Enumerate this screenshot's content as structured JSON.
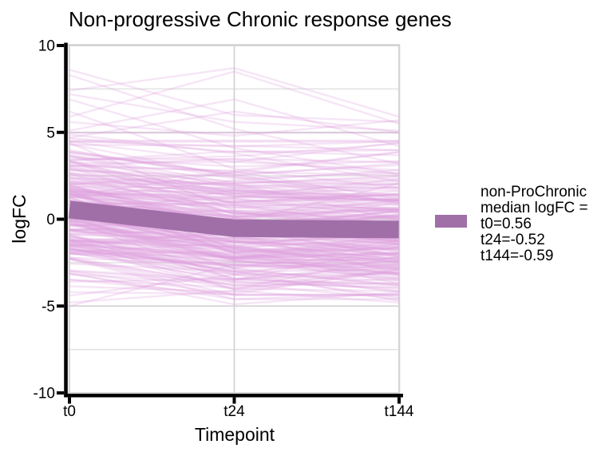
{
  "title": "Non-progressive Chronic response genes",
  "axes": {
    "x_label": "Timepoint",
    "y_label": "logFC",
    "x_ticks": [
      "t0",
      "t24",
      "t144"
    ],
    "y_ticks": [
      "10",
      "5",
      "0",
      "-5",
      "-10"
    ]
  },
  "legend": {
    "swatch_color": "#A06FA8",
    "lines": [
      "non-ProChronic",
      "median logFC =",
      "t0=0.56",
      "t24=-0.52",
      "t144=-0.59"
    ]
  },
  "colors": {
    "background": "#FFFFFF",
    "spaghetti": "#DDA0DD",
    "median": "#A06FA8",
    "grid_major": "#D3D3D3",
    "grid_minor": "#E2E2E2",
    "panel_border": "#D3D3D3",
    "axis": "#000000",
    "text": "#000000"
  },
  "chart_data": {
    "type": "line",
    "title": "Non-progressive Chronic response genes",
    "xlabel": "Timepoint",
    "ylabel": "logFC",
    "categories": [
      "t0",
      "t24",
      "t144"
    ],
    "ylim": [
      -10,
      10
    ],
    "yticks": [
      10,
      5,
      0,
      -5,
      -10
    ],
    "yticks_minor": [
      7.5,
      2.5,
      -2.5,
      -7.5
    ],
    "grid": true,
    "legend_position": "right",
    "series": [
      {
        "name": "non-ProChronic median logFC = t0=0.56 t24=-0.52 t144=-0.59",
        "role": "median",
        "values": [
          0.56,
          -0.52,
          -0.59
        ]
      }
    ],
    "background_lines": {
      "description": "Hundreds of semi-transparent individual gene logFC trajectories; individual values not legible. Rendered from seeded parameters below. Bulk spans roughly -5 to +5, outlier trajectories up to ~8.7 and down to ~-5.",
      "count": 235,
      "seed": 1337,
      "start_mean": 0.56,
      "start_sd": 1.9,
      "step1_mean": -1.08,
      "step1_sd": 0.95,
      "step2_mean": -0.07,
      "step2_sd": 0.85,
      "value_min": -5.0,
      "value_max": 5.2,
      "opacity": 0.28,
      "stroke_width": 2.4,
      "outliers": [
        [
          8.6,
          6.0,
          5.6
        ],
        [
          8.3,
          5.2,
          3.2
        ],
        [
          7.4,
          8.7,
          5.9
        ],
        [
          5.9,
          8.5,
          5.5
        ],
        [
          7.2,
          5.6,
          5.1
        ],
        [
          6.9,
          4.1,
          2.6
        ],
        [
          5.1,
          6.9,
          4.2
        ],
        [
          4.7,
          6.2,
          5.0
        ],
        [
          6.2,
          2.9,
          1.8
        ],
        [
          5.6,
          4.8,
          5.7
        ],
        [
          -5.0,
          -2.6,
          -3.1
        ],
        [
          -3.1,
          -4.9,
          -4.2
        ],
        [
          -4.4,
          -3.2,
          -4.5
        ],
        [
          -2.3,
          -4.6,
          -4.3
        ],
        [
          -1.5,
          -3.0,
          -4.7
        ],
        [
          -4.2,
          -4.3,
          -2.9
        ]
      ]
    }
  }
}
